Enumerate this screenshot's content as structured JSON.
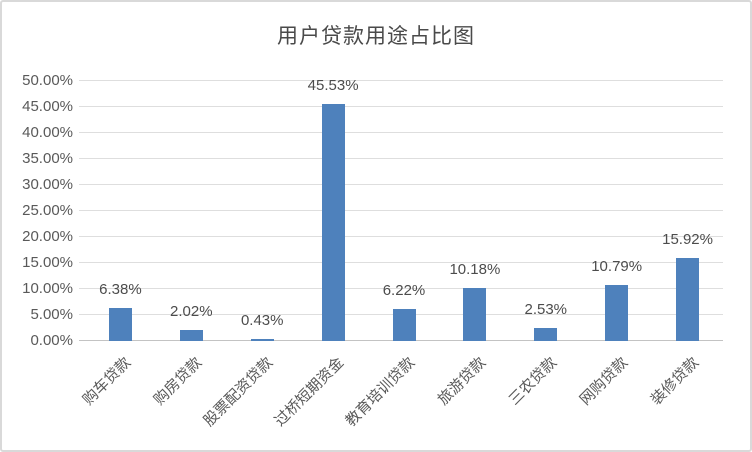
{
  "chart_data": {
    "type": "bar",
    "title": "用户贷款用途占比图",
    "categories": [
      "购车贷款",
      "购房贷款",
      "股票配资贷款",
      "过桥短期资金",
      "教育培训贷款",
      "旅游贷款",
      "三农贷款",
      "网购贷款",
      "装修贷款"
    ],
    "values": [
      6.38,
      2.02,
      0.43,
      45.53,
      6.22,
      10.18,
      2.53,
      10.79,
      15.92
    ],
    "value_labels": [
      "6.38%",
      "2.02%",
      "0.43%",
      "45.53%",
      "6.22%",
      "10.18%",
      "2.53%",
      "10.79%",
      "15.92%"
    ],
    "xlabel": "",
    "ylabel": "",
    "ylim": [
      0,
      50
    ],
    "ytick_step": 5,
    "ytick_labels": [
      "0.00%",
      "5.00%",
      "10.00%",
      "15.00%",
      "20.00%",
      "25.00%",
      "30.00%",
      "35.00%",
      "40.00%",
      "45.00%",
      "50.00%"
    ],
    "grid": true,
    "legend": false,
    "colors": {
      "bar": "#4E81BC",
      "gridline": "#dedede",
      "axis_line": "#c3c3c3",
      "text": "#595959",
      "title_text": "#4a4a4a",
      "frame_border": "#d9d9d9"
    }
  }
}
